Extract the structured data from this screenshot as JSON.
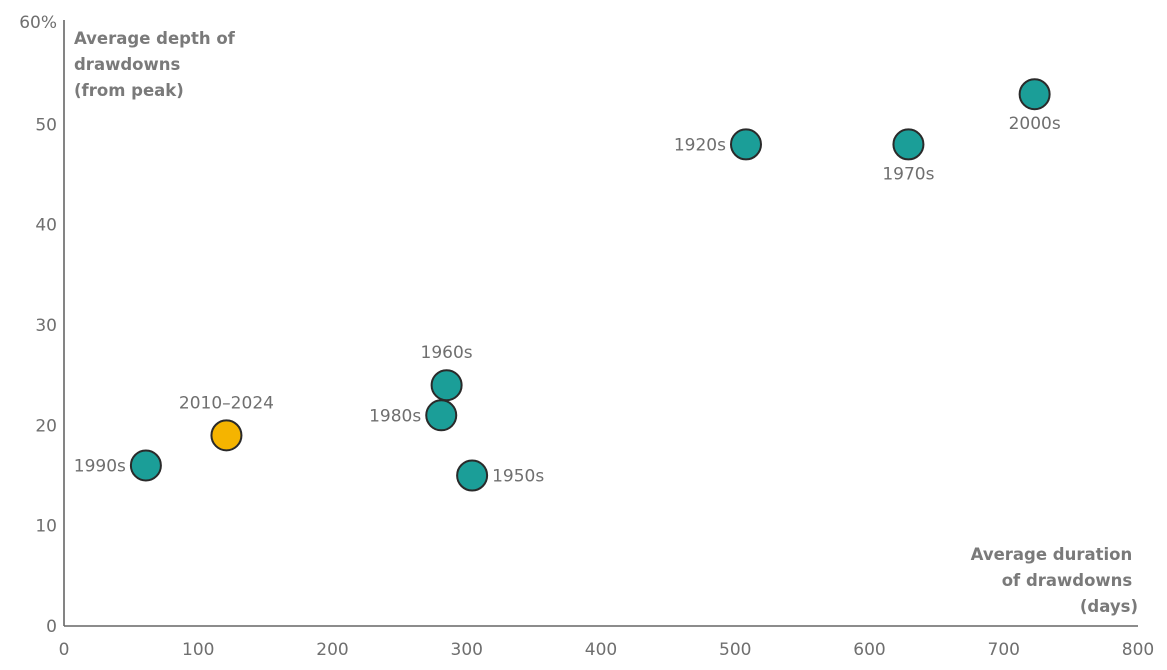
{
  "chart_data": {
    "type": "scatter",
    "title": "",
    "ylabel_lines": [
      "Average depth of",
      "drawdowns",
      "(from peak)"
    ],
    "xlabel_lines": [
      "Average duration",
      "of drawdowns",
      "(days)"
    ],
    "xlim": [
      0,
      800
    ],
    "ylim": [
      0,
      60
    ],
    "x_ticks": [
      0,
      100,
      200,
      300,
      400,
      500,
      600,
      700,
      800
    ],
    "y_ticks": [
      {
        "value": 0,
        "label": "0"
      },
      {
        "value": 10,
        "label": "10"
      },
      {
        "value": 20,
        "label": "20"
      },
      {
        "value": 30,
        "label": "30"
      },
      {
        "value": 40,
        "label": "40"
      },
      {
        "value": 50,
        "label": "50"
      },
      {
        "value": 60,
        "label": "60%"
      }
    ],
    "grid": false,
    "colors": {
      "default": "#1b9e98",
      "highlight": "#f5b400",
      "edge": "#2a2a2a"
    },
    "points": [
      {
        "label": "1990s",
        "x": 61,
        "y": 16,
        "highlight": false,
        "label_pos": "left"
      },
      {
        "label": "2010–2024",
        "x": 121,
        "y": 19,
        "highlight": true,
        "label_pos": "above"
      },
      {
        "label": "1960s",
        "x": 285,
        "y": 24,
        "highlight": false,
        "label_pos": "above"
      },
      {
        "label": "1980s",
        "x": 281,
        "y": 21,
        "highlight": false,
        "label_pos": "left"
      },
      {
        "label": "1950s",
        "x": 304,
        "y": 15,
        "highlight": false,
        "label_pos": "right"
      },
      {
        "label": "1920s",
        "x": 508,
        "y": 48,
        "highlight": false,
        "label_pos": "left"
      },
      {
        "label": "1970s",
        "x": 629,
        "y": 48,
        "highlight": false,
        "label_pos": "below"
      },
      {
        "label": "2000s",
        "x": 723,
        "y": 53,
        "highlight": false,
        "label_pos": "below"
      }
    ]
  }
}
